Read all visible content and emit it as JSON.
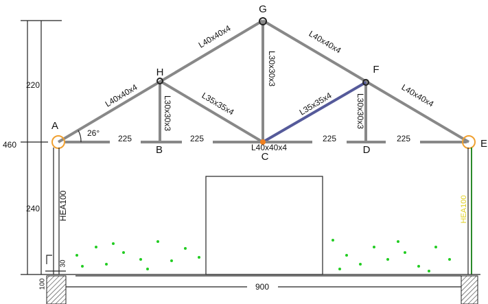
{
  "nodes": [
    {
      "label": "G"
    },
    {
      "label": "H"
    },
    {
      "label": "F"
    },
    {
      "label": "A"
    },
    {
      "label": "E"
    },
    {
      "label": "B"
    },
    {
      "label": "C"
    },
    {
      "label": "D"
    }
  ],
  "members": [
    {
      "label": "L40x40x4"
    },
    {
      "label": "L40x40x4"
    },
    {
      "label": "L40x40x4"
    },
    {
      "label": "L40x40x4"
    },
    {
      "label": "L30x30x3"
    },
    {
      "label": "L30x30x3"
    },
    {
      "label": "L30x30x3"
    },
    {
      "label": "L35x35x4"
    },
    {
      "label": "L35x35x4"
    },
    {
      "label": "L40x40x4"
    }
  ],
  "angle": "26°",
  "spans": [
    "225",
    "225",
    "225",
    "225"
  ],
  "dimensions": {
    "total_height": "460",
    "roof_height": "220",
    "wall_height": "240",
    "width": "900",
    "base": "30",
    "footing": "100"
  },
  "columns": [
    {
      "label": "HEA100"
    },
    {
      "label": "HEA100"
    }
  ]
}
